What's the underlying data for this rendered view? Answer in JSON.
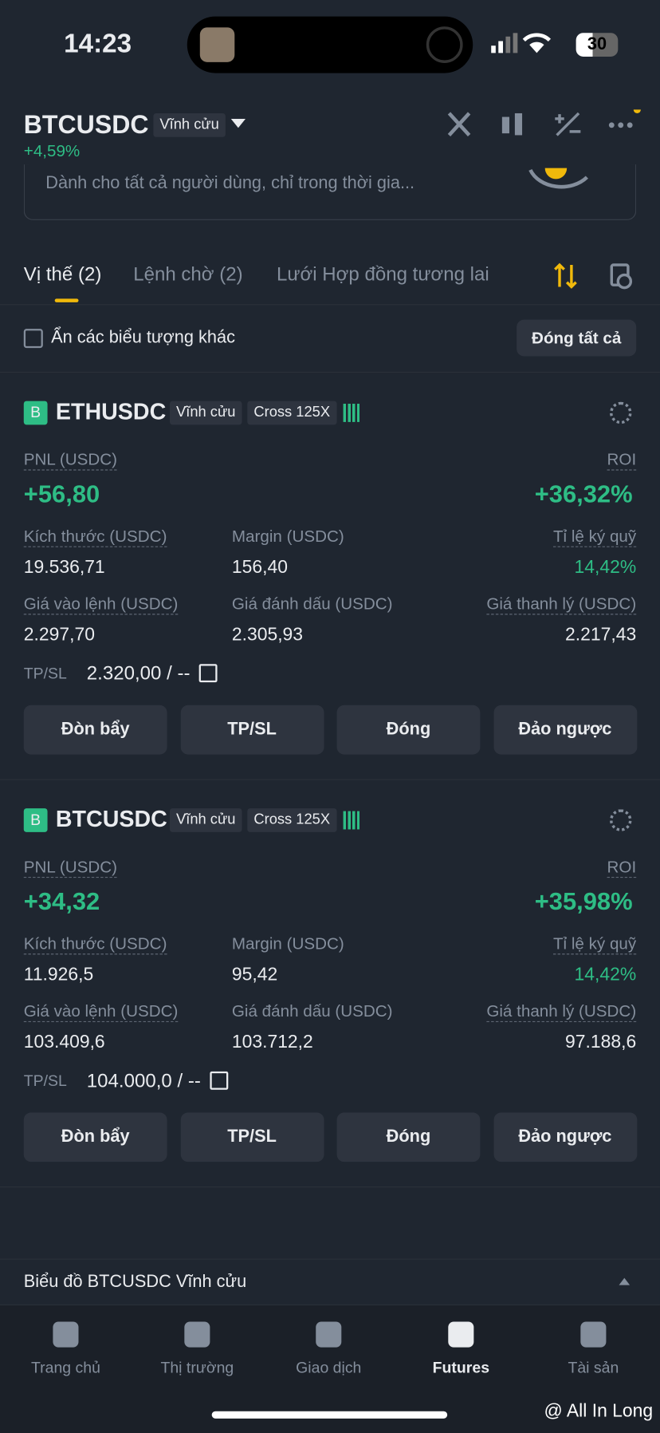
{
  "status": {
    "time": "14:23",
    "battery": "30"
  },
  "header": {
    "symbol": "BTCUSDC",
    "badge": "Vĩnh cửu",
    "change": "+4,59%"
  },
  "banner": "Dành cho tất cả người dùng, chỉ trong thời gia...",
  "tabs": [
    "Vị thế (2)",
    "Lệnh chờ (2)",
    "Lưới Hợp đồng tương lai"
  ],
  "filter": {
    "label": "Ẩn các biểu tượng khác",
    "close_all": "Đóng tất cả"
  },
  "positions": [
    {
      "side": "B",
      "symbol": "ETHUSDC",
      "type": "Vĩnh cửu",
      "margin_mode": "Cross 125X",
      "pnl_label": "PNL (USDC)",
      "pnl": "+56,80",
      "roi_label": "ROI",
      "roi": "+36,32%",
      "fields": [
        {
          "label": "Kích thước (USDC)",
          "value": "19.536,71"
        },
        {
          "label": "Margin (USDC)",
          "value": "156,40"
        },
        {
          "label": "Tỉ lệ ký quỹ",
          "value": "14,42%"
        },
        {
          "label": "Giá vào lệnh (USDC)",
          "value": "2.297,70"
        },
        {
          "label": "Giá đánh dấu (USDC)",
          "value": "2.305,93"
        },
        {
          "label": "Giá thanh lý (USDC)",
          "value": "2.217,43"
        }
      ],
      "tpsl_label": "TP/SL",
      "tpsl": "2.320,00 / --",
      "buttons": [
        "Đòn bẩy",
        "TP/SL",
        "Đóng",
        "Đảo ngược"
      ]
    },
    {
      "side": "B",
      "symbol": "BTCUSDC",
      "type": "Vĩnh cửu",
      "margin_mode": "Cross 125X",
      "pnl_label": "PNL (USDC)",
      "pnl": "+34,32",
      "roi_label": "ROI",
      "roi": "+35,98%",
      "fields": [
        {
          "label": "Kích thước (USDC)",
          "value": "11.926,5"
        },
        {
          "label": "Margin (USDC)",
          "value": "95,42"
        },
        {
          "label": "Tỉ lệ ký quỹ",
          "value": "14,42%"
        },
        {
          "label": "Giá vào lệnh (USDC)",
          "value": "103.409,6"
        },
        {
          "label": "Giá đánh dấu (USDC)",
          "value": "103.712,2"
        },
        {
          "label": "Giá thanh lý (USDC)",
          "value": "97.188,6"
        }
      ],
      "tpsl_label": "TP/SL",
      "tpsl": "104.000,0 / --",
      "buttons": [
        "Đòn bẩy",
        "TP/SL",
        "Đóng",
        "Đảo ngược"
      ]
    }
  ],
  "chart_bar": "Biểu đồ BTCUSDC Vĩnh cửu",
  "nav": [
    "Trang chủ",
    "Thị trường",
    "Giao dịch",
    "Futures",
    "Tài sản"
  ],
  "watermark": "@ All In Long"
}
